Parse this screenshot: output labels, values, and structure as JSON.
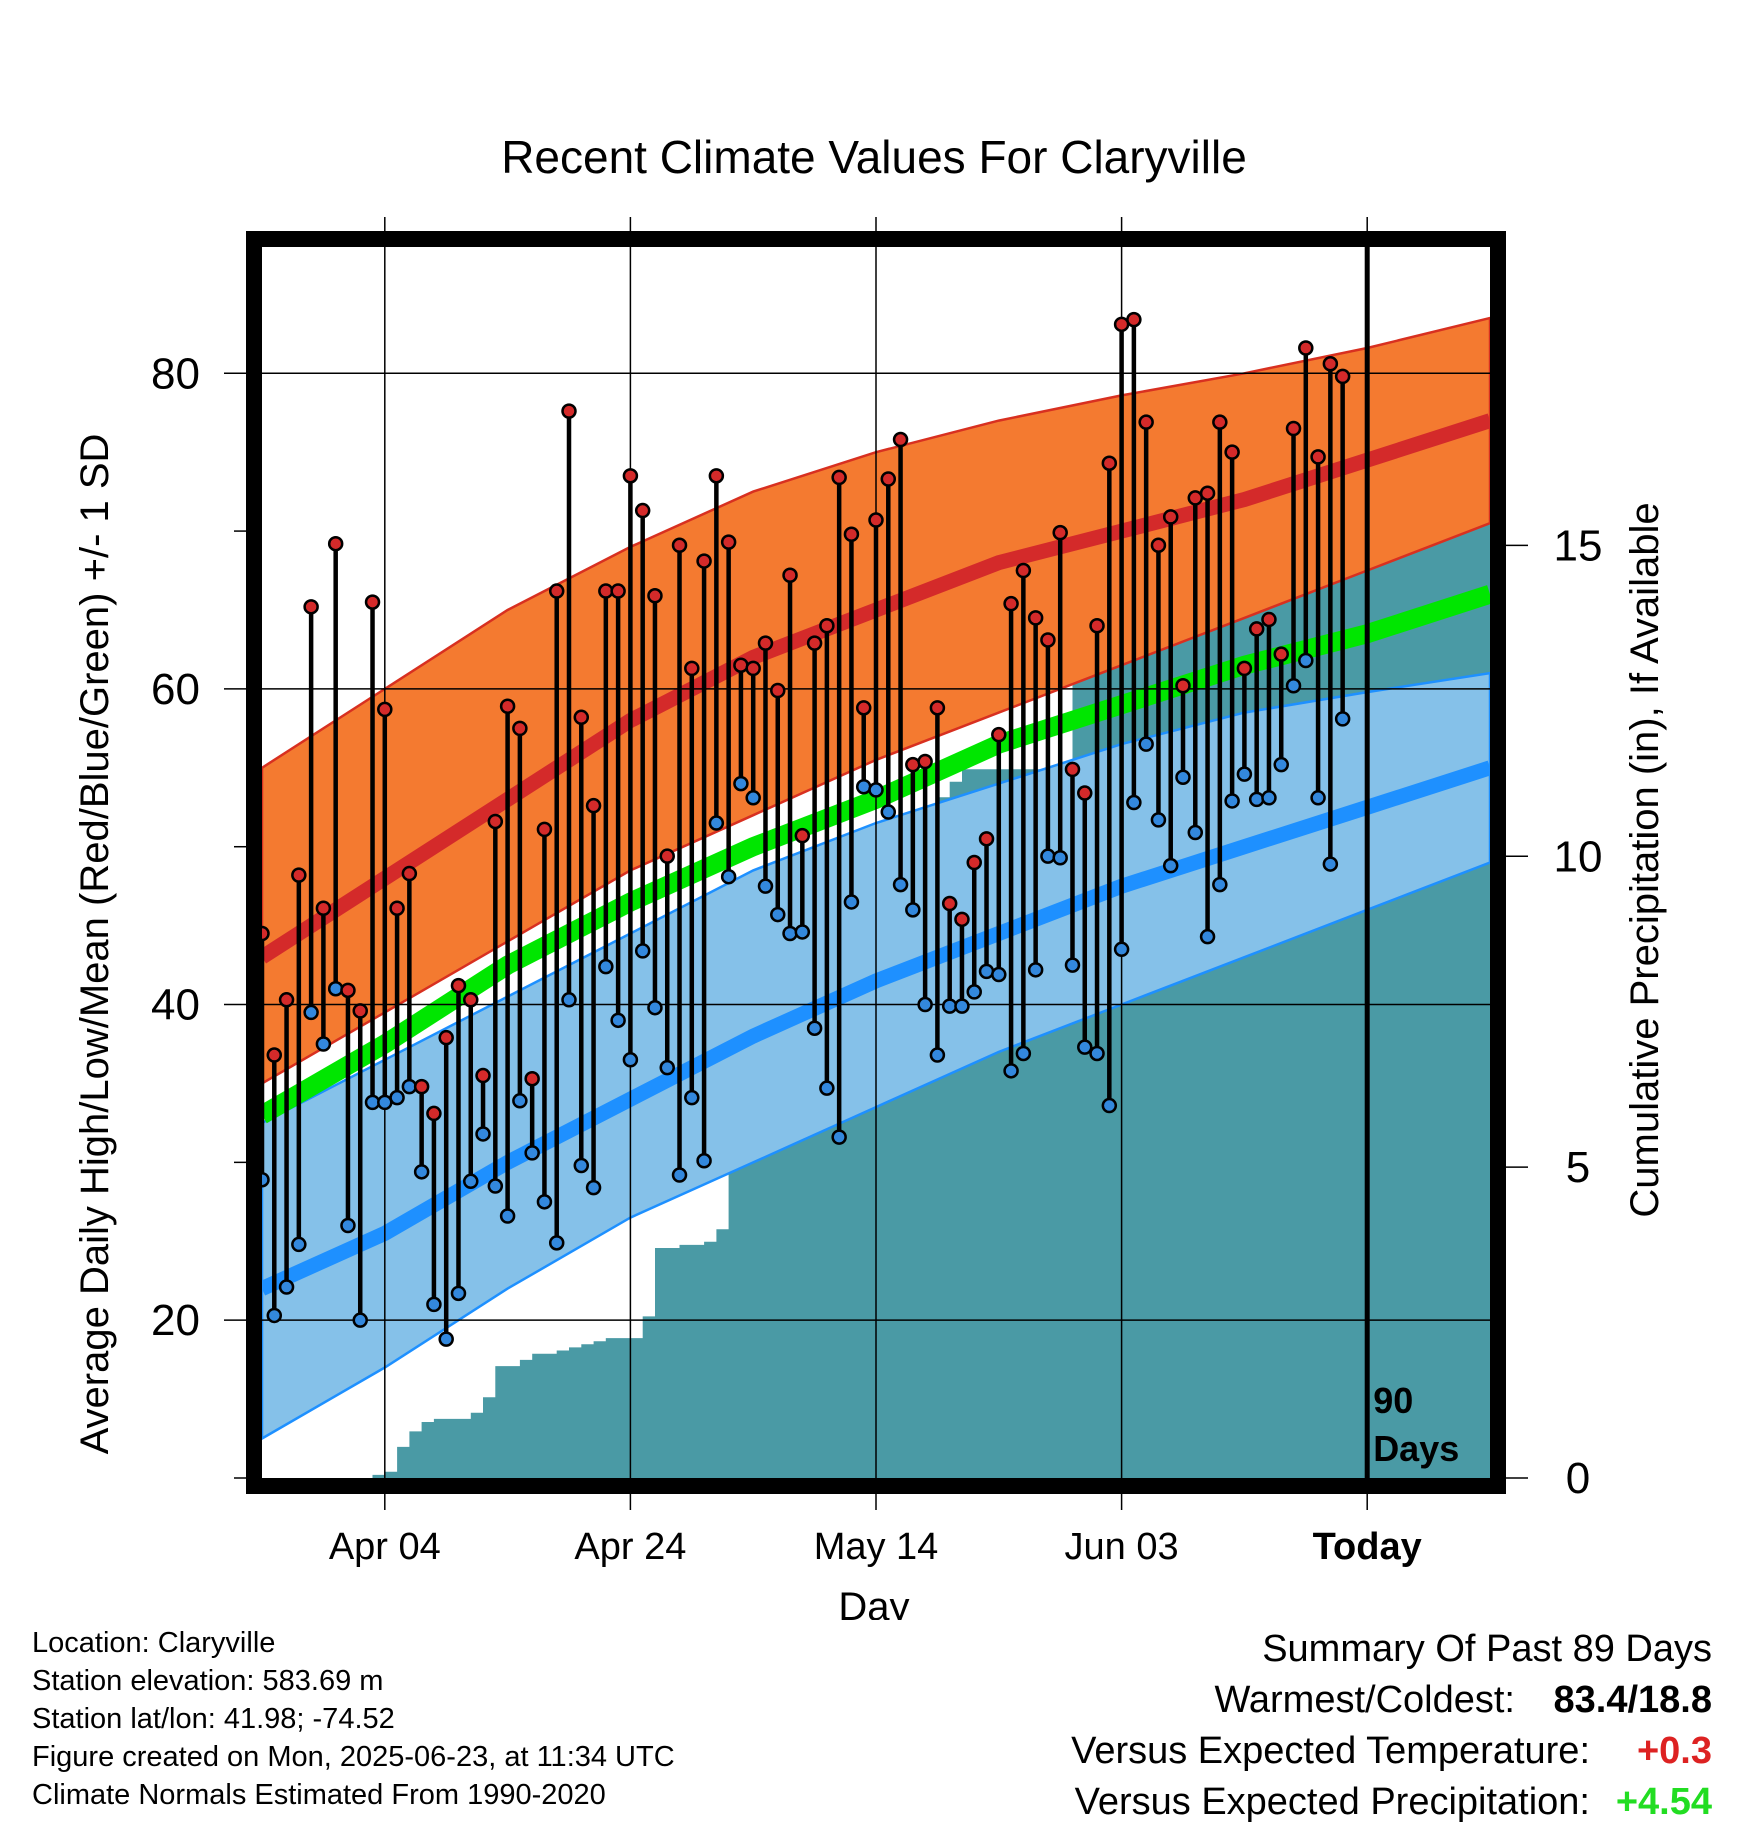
{
  "chart_data": {
    "type": "line",
    "title": "Recent Climate Values For Claryville",
    "xlabel": "Day",
    "ylabel": "Average Daily High/Low/Mean (Red/Blue/Green) +/- 1 SD",
    "y2label": "Cumulative Precipitation (in), If Available",
    "x_tick_labels": [
      "Apr 04",
      "Apr 24",
      "May 14",
      "Jun 03",
      "Today"
    ],
    "x_tick_days": [
      10,
      30,
      50,
      70,
      90
    ],
    "xlim": [
      0,
      100
    ],
    "ylim": [
      10,
      88
    ],
    "y_ticks": [
      20,
      40,
      60,
      80
    ],
    "y2lim": [
      0,
      19.8
    ],
    "y2_ticks": [
      0,
      5,
      10,
      15
    ],
    "grid": true,
    "today_marker": {
      "day": 90,
      "label_line1": "90",
      "label_line2": "Days"
    },
    "colors": {
      "high_band": "#f47a30",
      "high_mean": "#d42a2a",
      "low_band": "#85c1e9",
      "low_mean": "#1e90ff",
      "mean_line": "#00e600",
      "precip_fill": "#4a9aa5",
      "high_point": "#d42a2a",
      "low_point": "#3388dd"
    },
    "normals": {
      "days": [
        0,
        10,
        20,
        30,
        40,
        50,
        60,
        70,
        80,
        90,
        100
      ],
      "normal_high": [
        43,
        48,
        53,
        58,
        62,
        65,
        68,
        70,
        72,
        74.5,
        77
      ],
      "high_upper": [
        55,
        60,
        65,
        69,
        72.5,
        75,
        77,
        78.6,
        80,
        81.6,
        83.5
      ],
      "high_lower": [
        35,
        39.5,
        44,
        48.5,
        52,
        55.5,
        58.5,
        61.5,
        64.5,
        67.5,
        70.5
      ],
      "normal_mean": [
        33,
        37.5,
        42.5,
        46.5,
        50,
        53,
        56.5,
        59,
        61.5,
        63.5,
        66
      ],
      "normal_low": [
        22,
        25.5,
        30,
        34,
        38,
        41.5,
        44.5,
        47.5,
        50,
        52.5,
        55
      ],
      "low_upper": [
        32.5,
        36.5,
        40.5,
        44.5,
        48.5,
        51.5,
        54,
        56.5,
        58.5,
        59.8,
        61
      ],
      "low_lower": [
        12.5,
        17,
        22,
        26.5,
        30,
        33.5,
        37,
        40,
        43,
        46,
        49
      ]
    },
    "daily_high": [
      44.5,
      36.8,
      40.3,
      48.2,
      65.2,
      46.1,
      69.2,
      40.9,
      39.6,
      65.5,
      58.7,
      46.1,
      48.3,
      34.8,
      33.1,
      37.9,
      41.2,
      40.3,
      35.5,
      51.6,
      58.9,
      57.5,
      35.3,
      51.1,
      66.2,
      77.6,
      58.2,
      52.6,
      66.2,
      66.2,
      73.5,
      71.3,
      65.9,
      49.4,
      69.1,
      61.3,
      68.1,
      73.5,
      69.3,
      61.5,
      61.3,
      62.9,
      59.9,
      67.2,
      50.7,
      62.9,
      64.0,
      73.4,
      69.8,
      58.8,
      70.7,
      73.3,
      75.8,
      55.2,
      55.4,
      58.8,
      46.4,
      45.4,
      49.0,
      50.5,
      57.1,
      65.4,
      67.5,
      64.5,
      63.1,
      69.9,
      54.9,
      53.4,
      64.0,
      74.3,
      83.1,
      83.4,
      76.9,
      69.1,
      70.9,
      60.2,
      72.1,
      72.4,
      76.9,
      75.0,
      61.3,
      63.8,
      64.4,
      62.2,
      76.5,
      81.6,
      74.7,
      80.6,
      79.8
    ],
    "daily_low": [
      28.9,
      20.3,
      22.1,
      24.8,
      39.5,
      37.5,
      41.0,
      26.0,
      20.0,
      33.8,
      33.8,
      34.1,
      34.8,
      29.4,
      21.0,
      18.8,
      21.7,
      28.8,
      31.8,
      28.5,
      26.6,
      33.9,
      30.6,
      27.5,
      24.9,
      40.3,
      29.8,
      28.4,
      42.4,
      39.0,
      36.5,
      43.4,
      39.8,
      36.0,
      29.2,
      34.1,
      30.1,
      51.5,
      48.1,
      54.0,
      53.1,
      47.5,
      45.7,
      44.5,
      44.6,
      38.5,
      34.7,
      31.6,
      46.5,
      53.8,
      53.6,
      52.2,
      47.6,
      46.0,
      40.0,
      36.8,
      39.9,
      39.9,
      40.8,
      42.1,
      41.9,
      35.8,
      36.9,
      42.2,
      49.4,
      49.3,
      42.5,
      37.3,
      36.9,
      33.6,
      43.5,
      52.8,
      56.5,
      51.7,
      48.8,
      54.4,
      50.9,
      44.3,
      47.6,
      52.9,
      54.6,
      53.0,
      53.1,
      55.2,
      60.2,
      61.8,
      53.1,
      48.9,
      58.1
    ],
    "cumulative_precip": {
      "days": [
        0,
        8,
        9,
        10,
        11,
        12,
        13,
        14,
        15,
        16,
        17,
        18,
        19,
        20,
        21,
        22,
        23,
        24,
        25,
        26,
        27,
        28,
        29,
        30,
        31,
        32,
        33,
        34,
        35,
        36,
        37,
        38,
        39,
        40,
        41,
        42,
        43,
        44,
        45,
        46,
        47,
        48,
        49,
        50,
        51,
        52,
        53,
        54,
        55,
        56,
        57,
        58,
        59,
        60,
        61,
        62,
        63,
        64,
        65,
        66,
        67,
        68,
        69,
        70,
        71,
        72,
        73,
        74,
        75,
        76,
        77,
        78,
        79,
        80,
        81,
        82,
        83,
        84,
        85,
        86,
        87,
        88,
        89,
        90,
        100
      ],
      "values": [
        0,
        0,
        0.05,
        0.1,
        0.5,
        0.75,
        0.9,
        0.95,
        0.95,
        0.95,
        1.05,
        1.3,
        1.8,
        1.8,
        1.9,
        2.0,
        2.0,
        2.05,
        2.1,
        2.15,
        2.2,
        2.25,
        2.25,
        2.25,
        2.6,
        3.7,
        3.7,
        3.75,
        3.75,
        3.8,
        4.0,
        5.5,
        6.2,
        7.6,
        7.8,
        8.8,
        8.8,
        8.8,
        9.1,
        9.95,
        10.0,
        10.0,
        10.2,
        10.25,
        10.3,
        10.3,
        10.3,
        10.7,
        10.95,
        11.2,
        11.4,
        11.4,
        11.4,
        11.4,
        11.4,
        11.4,
        11.4,
        11.45,
        11.45,
        13.5,
        13.5,
        13.5,
        13.5,
        13.5,
        13.5,
        13.6,
        13.9,
        14.2,
        14.6,
        14.9,
        14.9,
        14.9,
        15.0,
        15.3,
        15.5,
        15.8,
        16.6,
        16.6,
        16.6,
        16.8,
        17.1,
        17.1,
        17.1,
        17.1,
        17.1
      ]
    }
  },
  "footer": {
    "location": "Location: Claryville",
    "elevation": "Station elevation: 583.69 m",
    "latlon": "Station lat/lon: 41.98; -74.52",
    "created": "Figure created on Mon, 2025-06-23, at 11:34 UTC",
    "normals": "Climate Normals Estimated From 1990-2020"
  },
  "summary": {
    "heading": "Summary Of Past 89 Days",
    "warmest_label": "Warmest/Coldest:",
    "warmest_value": "83.4/18.8",
    "temp_label": "Versus Expected Temperature:",
    "temp_value": "+0.3",
    "temp_color": "#dd2222",
    "precip_label": "Versus Expected Precipitation:",
    "precip_value": "+4.54",
    "precip_color": "#22dd22"
  }
}
